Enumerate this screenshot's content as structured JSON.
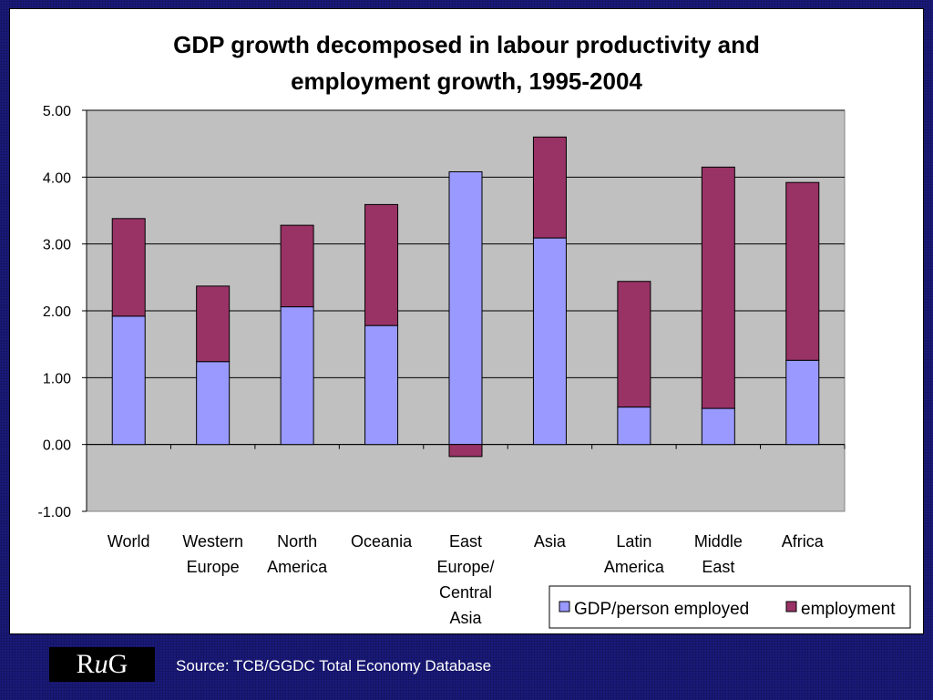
{
  "chart_data": {
    "type": "bar",
    "stacked": true,
    "title": "GDP growth decomposed in labour productivity and employment growth, 1995-2004",
    "title_lines": [
      "GDP growth decomposed in labour productivity and",
      "employment growth, 1995-2004"
    ],
    "xlabel": "",
    "ylabel": "",
    "ylim": [
      -1.0,
      5.0
    ],
    "yticks": [
      -1.0,
      0.0,
      1.0,
      2.0,
      3.0,
      4.0,
      5.0
    ],
    "ytick_labels": [
      "-1.00",
      "0.00",
      "1.00",
      "2.00",
      "3.00",
      "4.00",
      "5.00"
    ],
    "grid": true,
    "legend_position": "bottom-right",
    "categories": [
      "World",
      "Western Europe",
      "North America",
      "Oceania",
      "East Europe/ Central Asia",
      "Asia",
      "Latin America",
      "Middle East",
      "Africa"
    ],
    "category_lines": [
      [
        "World"
      ],
      [
        "Western",
        "Europe"
      ],
      [
        "North",
        "America"
      ],
      [
        "Oceania"
      ],
      [
        "East",
        "Europe/",
        "Central",
        "Asia"
      ],
      [
        "Asia"
      ],
      [
        "Latin",
        "America"
      ],
      [
        "Middle",
        "East"
      ],
      [
        "Africa"
      ]
    ],
    "series": [
      {
        "name": "GDP/person employed",
        "color": "#9999ff",
        "values": [
          1.92,
          1.24,
          2.06,
          1.78,
          4.08,
          3.09,
          0.56,
          0.54,
          1.26
        ]
      },
      {
        "name": "employment",
        "color": "#993366",
        "values": [
          1.46,
          1.13,
          1.22,
          1.81,
          -0.18,
          1.51,
          1.88,
          3.61,
          2.66
        ]
      }
    ],
    "plot_background": "#c0c0c0"
  },
  "footer": {
    "logo_r": "R",
    "logo_u": "u",
    "logo_g": "G",
    "source": "Source: TCB/GGDC Total Economy Database"
  }
}
